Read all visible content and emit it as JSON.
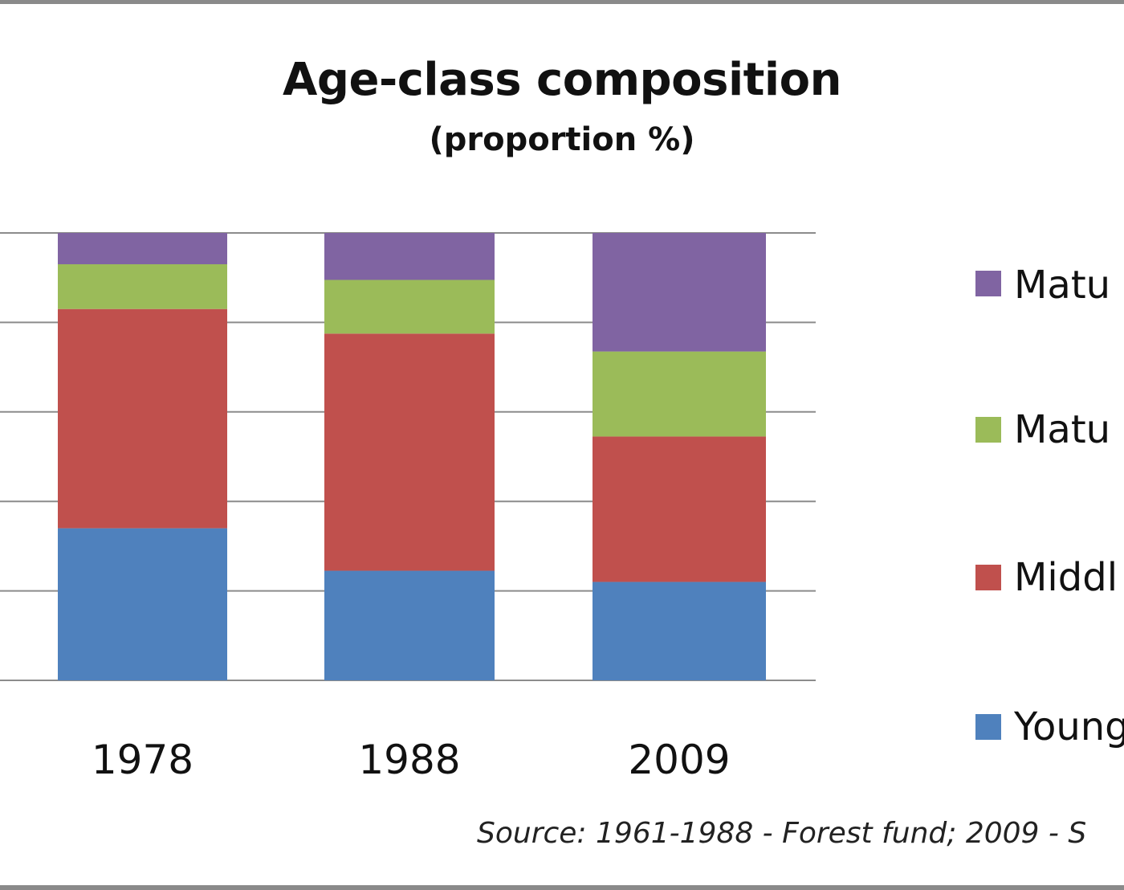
{
  "chart_data": {
    "type": "bar",
    "stacked": true,
    "title": "Age-class composition",
    "subtitle": "(proportion %)",
    "xlabel": "",
    "ylabel": "",
    "ylim": [
      0,
      100
    ],
    "grid": true,
    "legend_position": "right",
    "categories": [
      "1978",
      "1988",
      "2009"
    ],
    "series": [
      {
        "name": "Young",
        "color": "#4f81bd",
        "values": [
          34,
          24.5,
          22
        ]
      },
      {
        "name": "Middl",
        "color": "#c0504d",
        "values": [
          49,
          53,
          32.5
        ]
      },
      {
        "name": "Matu",
        "color": "#9bbb59",
        "values": [
          10,
          12,
          19
        ]
      },
      {
        "name": "Matu stand",
        "color": "#8064a2",
        "values": [
          7,
          10.5,
          26.5
        ]
      }
    ],
    "source": "Source: 1961-1988 - Forest fund; 2009 - S"
  }
}
